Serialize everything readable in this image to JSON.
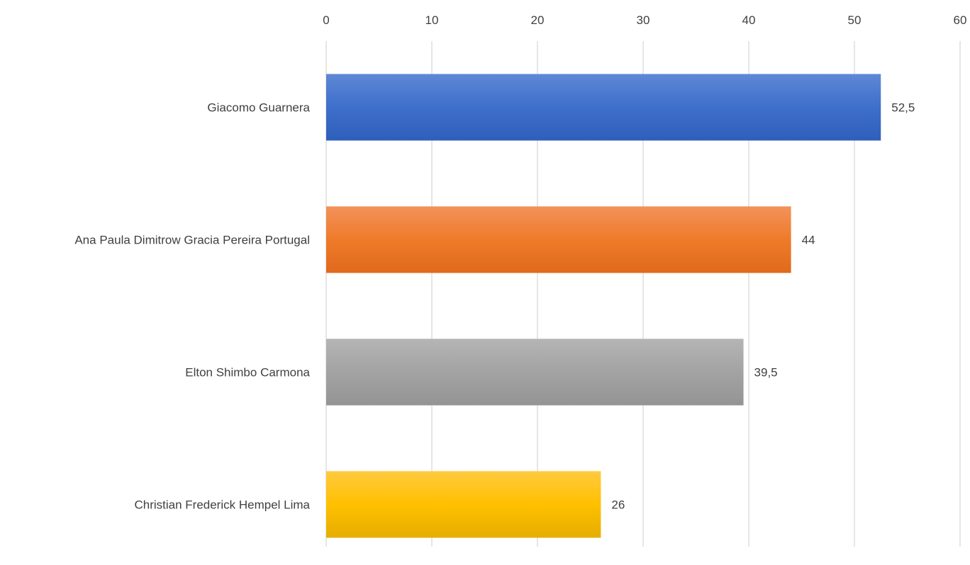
{
  "chart_data": {
    "type": "bar",
    "orientation": "horizontal",
    "title": "",
    "xlabel": "",
    "ylabel": "",
    "categories": [
      "Giacomo Guarnera",
      "Ana Paula Dimitrow Gracia Pereira Portugal",
      "Elton Shimbo Carmona",
      "Christian Frederick Hempel Lima"
    ],
    "values": [
      52.5,
      44,
      39.5,
      26
    ],
    "data_labels": [
      "52,5",
      "44",
      "39,5",
      "26"
    ],
    "xlim": [
      0,
      60
    ],
    "ticks": [
      0,
      10,
      20,
      30,
      40,
      50,
      60
    ],
    "tick_labels": [
      "0",
      "10",
      "20",
      "30",
      "40",
      "50",
      "60"
    ],
    "axis_position": "top",
    "grid": true,
    "legend": "none",
    "colors": [
      [
        "#5f88d6",
        "#3e6fcb",
        "#2e5fbb"
      ],
      [
        "#f2925a",
        "#ef7b2a",
        "#e0691c"
      ],
      [
        "#b5b5b5",
        "#a3a3a3",
        "#949494"
      ],
      [
        "#ffca3f",
        "#ffc000",
        "#e6ad00"
      ]
    ]
  }
}
